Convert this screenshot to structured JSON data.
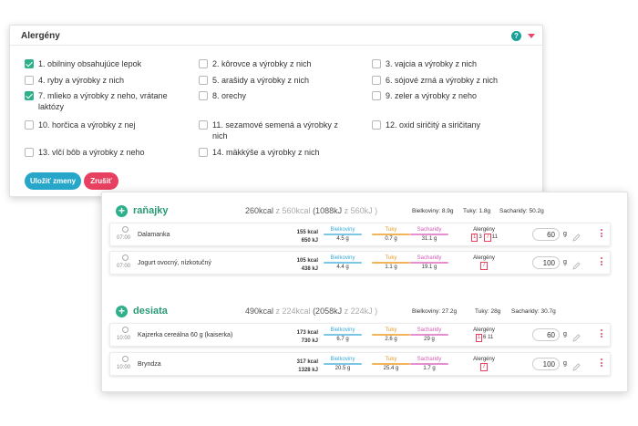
{
  "allergens": {
    "title": "Alergény",
    "help_icon": "?",
    "items": [
      {
        "label": "1. obilniny obsahujúce lepok",
        "checked": true
      },
      {
        "label": "2. kôrovce a výrobky z nich",
        "checked": false
      },
      {
        "label": "3. vajcia a výrobky z nich",
        "checked": false
      },
      {
        "label": "4. ryby a výrobky z nich",
        "checked": false
      },
      {
        "label": "5. arašidy a výrobky z nich",
        "checked": false
      },
      {
        "label": "6. sójové zrná a výrobky z nich",
        "checked": false
      },
      {
        "label": "7. mlieko a výrobky z neho, vrátane",
        "label2": "laktózy",
        "checked": true
      },
      {
        "label": "8. orechy",
        "checked": false
      },
      {
        "label": "9. zeler a výrobky z neho",
        "checked": false
      },
      {
        "label": "10. horčica a výrobky z nej",
        "checked": false
      },
      {
        "label": "11. sezamové semená a výrobky z",
        "label2": "nich",
        "checked": false
      },
      {
        "label": "12. oxid siričitý a siričitany",
        "checked": false
      },
      {
        "label": "13. vlčí bôb a výrobky z neho",
        "checked": false
      },
      {
        "label": "14. mäkkýše a výrobky z nich",
        "checked": false
      }
    ],
    "save_label": "Uložiť zmeny",
    "cancel_label": "Zrušiť"
  },
  "macro_labels": {
    "protein": "Bielkoviny",
    "fat": "Tuky",
    "carb": "Sacharidy",
    "allergens": "Alergény"
  },
  "colors": {
    "accent_green": "#2eb08a",
    "save_blue": "#26a7c9",
    "cancel_red": "#e84060",
    "help_teal": "#1aa09a"
  },
  "meals": [
    {
      "name": "raňajky",
      "kcal": "260kcal",
      "kcal_total": "z 560kcal",
      "kj": "(1088kJ",
      "kj_total": "z 560kJ )",
      "sum_protein": "Bielkoviny: 8.9g",
      "sum_fat": "Tuky: 1.8g",
      "sum_carb": "Sacharidy: 50.2g",
      "foods": [
        {
          "time": "07:00",
          "name": "Dalamanka",
          "kcal": "155 kcal",
          "kj": "650 kJ",
          "protein": "4.5 g",
          "fat": "0.7 g",
          "carb": "31.1 g",
          "allergen_codes": [
            "1",
            "3",
            "7",
            "11"
          ],
          "boxed": [
            "1",
            "7"
          ],
          "qty": "60",
          "unit": "g"
        },
        {
          "time": "07:00",
          "name": "Jogurt ovocný, nízkotučný",
          "kcal": "105 kcal",
          "kj": "438 kJ",
          "protein": "4.4 g",
          "fat": "1.1 g",
          "carb": "19.1 g",
          "allergen_codes": [
            "7"
          ],
          "boxed": [
            "7"
          ],
          "qty": "100",
          "unit": "g"
        }
      ]
    },
    {
      "name": "desiata",
      "kcal": "490kcal",
      "kcal_total": "z 224kcal",
      "kj": "(2058kJ",
      "kj_total": "z 224kJ )",
      "sum_protein": "Bielkoviny: 27.2g",
      "sum_fat": "Tuky: 28g",
      "sum_carb": "Sacharidy: 30.7g",
      "foods": [
        {
          "time": "10:00",
          "name": "Kajzerka cereálna 60 g (kaiserka)",
          "kcal": "173 kcal",
          "kj": "730 kJ",
          "protein": "6.7 g",
          "fat": "2.6 g",
          "carb": "29 g",
          "allergen_codes": [
            "1",
            "6",
            "11"
          ],
          "boxed": [
            "1"
          ],
          "qty": "60",
          "unit": "g"
        },
        {
          "time": "10:00",
          "name": "Bryndza",
          "kcal": "317 kcal",
          "kj": "1328 kJ",
          "protein": "20.5 g",
          "fat": "25.4 g",
          "carb": "1.7 g",
          "allergen_codes": [
            "7"
          ],
          "boxed": [
            "7"
          ],
          "qty": "100",
          "unit": "g"
        }
      ]
    }
  ]
}
